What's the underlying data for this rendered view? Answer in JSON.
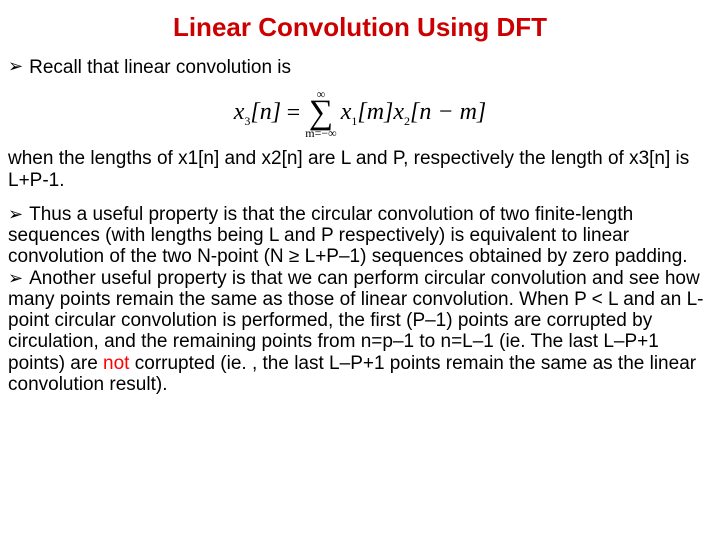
{
  "title": {
    "text": "Linear Convolution Using DFT",
    "color": "#cc0000",
    "fontsize_pt": 26
  },
  "body_fontsize_pt": 19,
  "bullet_glyph": "➢",
  "bullet1": "Recall that linear convolution is",
  "formula": {
    "lhs_var": "x",
    "lhs_sub": "3",
    "lhs_bracket": "[n]",
    "eq": " = ",
    "sum_top": "∞",
    "sum_sym": "∑",
    "sum_bottom": "m=−∞",
    "term1_var": "x",
    "term1_sub": "1",
    "term1_br": "[m]",
    "term2_var": "x",
    "term2_sub": "2",
    "term2_br": "[n − m]"
  },
  "continuation": "when the lengths of x1[n] and x2[n] are L and P, respectively the length of x3[n] is L+P-1.",
  "bullet2": "Thus a useful property is that the circular convolution of two finite-length sequences (with lengths being L and P respectively) is equivalent to linear convolution of the two N-point (N ≥ L+P–1) sequences obtained by zero padding.",
  "bullet3_part1": "Another useful property is that we can perform circular convolution and see how many points remain the same as those of linear convolution. When P < L and an L-point circular convolution is performed, the first (P–1) points are corrupted by circulation, and the remaining points from n=p–1 to n=L–1 (ie. The last L–P+1 points) are ",
  "bullet3_not": "not",
  "bullet3_part2": " corrupted (ie. , the last L–P+1 points remain the same as the linear convolution result)."
}
